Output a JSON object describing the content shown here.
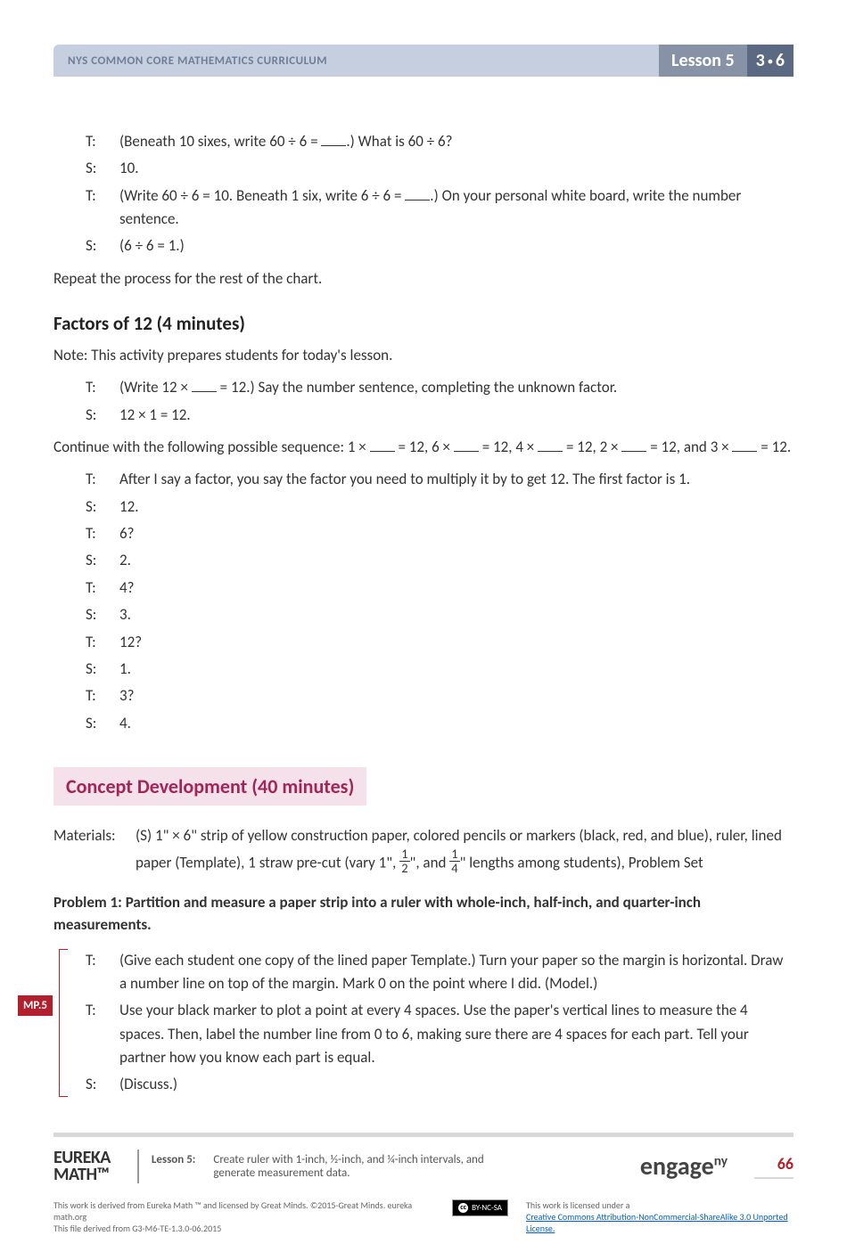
{
  "header": {
    "curriculum": "NYS COMMON CORE MATHEMATICS CURRICULUM",
    "lesson": "Lesson 5",
    "grade_left": "3",
    "grade_right": "6"
  },
  "dialogue1": [
    {
      "speaker": "T:",
      "text": "(Beneath 10 sixes, write 60 ÷ 6 = ___.)  What is 60 ÷ 6?"
    },
    {
      "speaker": "S:",
      "text": "10."
    },
    {
      "speaker": "T:",
      "text": "(Write 60 ÷ 6 = 10.  Beneath 1 six, write 6 ÷ 6 = ___.)  On your personal white board, write the number sentence."
    },
    {
      "speaker": "S:",
      "text": "(6 ÷ 6 = 1.)"
    }
  ],
  "repeat_text": "Repeat the process for the rest of the chart.",
  "factors_title": "Factors of 12  (4 minutes)",
  "factors_note": "Note:  This activity prepares students for today's lesson.",
  "dialogue2": [
    {
      "speaker": "T:",
      "text": "(Write 12 × ___ = 12.)  Say the number sentence, completing the unknown factor."
    },
    {
      "speaker": "S:",
      "text": "12 × 1 = 12."
    }
  ],
  "continue_text": "Continue with the following possible sequence:  1 × ___ = 12, 6 × ___ = 12, 4 × ___ = 12, 2 × ___ = 12, and 3 × ___ = 12.",
  "dialogue3": [
    {
      "speaker": "T:",
      "text": "After I say a factor, you say the factor you need to multiply it by to get 12.  The first factor is 1."
    },
    {
      "speaker": "S:",
      "text": "12."
    },
    {
      "speaker": "T:",
      "text": "6?"
    },
    {
      "speaker": "S:",
      "text": "2."
    },
    {
      "speaker": "T:",
      "text": "4?"
    },
    {
      "speaker": "S:",
      "text": "3."
    },
    {
      "speaker": "T:",
      "text": "12?"
    },
    {
      "speaker": "S:",
      "text": "1."
    },
    {
      "speaker": "T:",
      "text": "3?"
    },
    {
      "speaker": "S:",
      "text": "4."
    }
  ],
  "concept_title": "Concept Development  (40 minutes)",
  "materials_label": "Materials:",
  "materials_text_parts": {
    "p1": "(S) 1\" × 6\" strip of yellow construction paper, colored pencils or markers (black, red, and blue), ruler, lined paper (Template), 1 straw pre-cut (vary 1\", ",
    "p2": "\", and ",
    "p3": "\" lengths among students), Problem Set"
  },
  "problem1_title": "Problem 1:  Partition and measure a paper strip into a ruler with whole-inch, half-inch, and quarter-inch measurements.",
  "mp_label": "MP.5",
  "dialogue4": [
    {
      "speaker": "T:",
      "text": "(Give each student one copy of the lined paper Template.)  Turn your paper so the margin is horizontal.  Draw a number line on top of the margin.  Mark 0 on the point where I did.  (Model.)"
    },
    {
      "speaker": "T:",
      "text": "Use your black marker to plot a point at every 4 spaces.  Use the paper's vertical lines to measure the 4 spaces.  Then, label the number line from 0 to 6, making sure there are 4 spaces for each part.  Tell your partner how you know each part is equal."
    },
    {
      "speaker": "S:",
      "text": "(Discuss.)"
    }
  ],
  "footer": {
    "brand1": "EUREKA",
    "brand2": "MATH™",
    "lesson_num": "Lesson 5:",
    "lesson_desc": "Create ruler with 1-inch, ½-inch, and ¼-inch intervals, and generate measurement data.",
    "engage_text": "engage",
    "engage_sup": "ny",
    "page_num": "66"
  },
  "license": {
    "left1": "This work is derived from Eureka Math ™ and licensed by Great Minds. ©2015-Great Minds. eureka math.org",
    "left2": "This file derived from G3-M6-TE-1.3.0-06.2015",
    "cc_label": "BY-NC-SA",
    "right1": "This work is licensed under a",
    "right_link": "Creative Commons Attribution-NonCommercial-ShareAlike 3.0 Unported License."
  },
  "colors": {
    "header_left_bg": "#c5cfe0",
    "header_left_text": "#6f7d96",
    "header_lesson_bg": "#8792a7",
    "header_grade_bg": "#5c6983",
    "concept_bg": "#f4e1ea",
    "concept_text": "#a32558",
    "accent_red": "#b2202e",
    "link": "#0060cc"
  }
}
